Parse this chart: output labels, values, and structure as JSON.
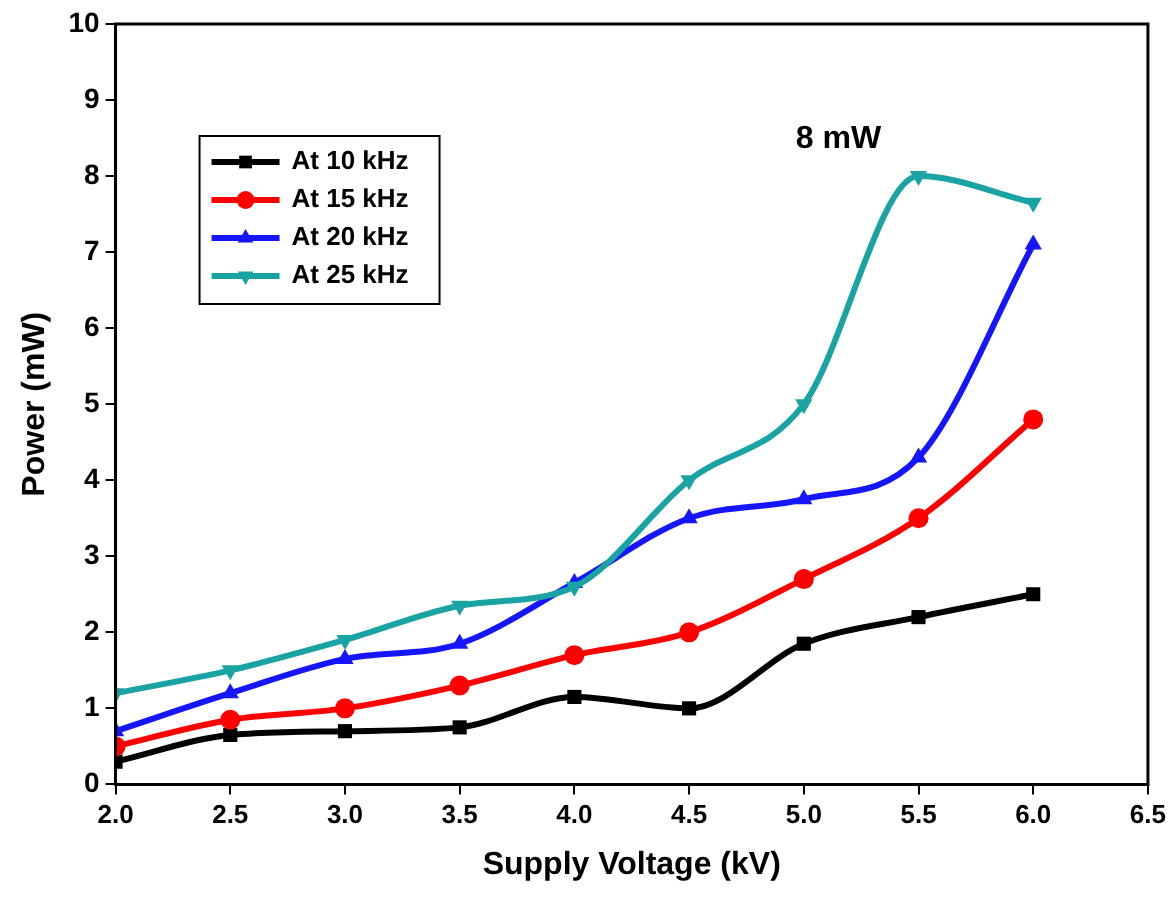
{
  "chart_data": {
    "type": "line",
    "xlabel": "Supply Voltage (kV)",
    "ylabel": "Power (mW)",
    "x": [
      2.0,
      2.5,
      3.0,
      3.5,
      4.0,
      4.5,
      5.0,
      5.5,
      6.0
    ],
    "xlim": [
      2.0,
      6.5
    ],
    "xticks": [
      {
        "value": 2,
        "label": "2.0"
      },
      2.5,
      {
        "value": 3,
        "label": "3.0"
      },
      3.5,
      {
        "value": 4,
        "label": "4.0"
      },
      4.5,
      {
        "value": 5,
        "label": "5.0"
      },
      5.5,
      {
        "value": 6,
        "label": "6.0"
      },
      6.5
    ],
    "ylim": [
      0,
      10
    ],
    "yticks": [
      0,
      1,
      2,
      3,
      4,
      5,
      6,
      7,
      8,
      9,
      10
    ],
    "series": [
      {
        "name": "At 10 kHz",
        "color": "#000000",
        "marker": "square",
        "values": [
          0.3,
          0.65,
          0.7,
          0.75,
          1.15,
          1.0,
          1.85,
          2.2,
          2.5
        ]
      },
      {
        "name": "At 15 kHz",
        "color": "#ff0000",
        "marker": "circle",
        "values": [
          0.5,
          0.85,
          1.0,
          1.3,
          1.7,
          2.0,
          2.7,
          3.5,
          4.8
        ]
      },
      {
        "name": "At 20 kHz",
        "color": "#1515ff",
        "marker": "triangle",
        "values": [
          0.7,
          1.2,
          1.65,
          1.85,
          2.65,
          3.5,
          3.75,
          4.3,
          7.1
        ]
      },
      {
        "name": "At 25 kHz",
        "color": "#1aa3a3",
        "marker": "triangle-down",
        "values": [
          1.2,
          1.5,
          1.9,
          2.35,
          2.6,
          4.0,
          5.0,
          8.0,
          7.65
        ]
      }
    ],
    "annotations": [
      {
        "text": "8 mW",
        "x": 5.5,
        "y": 8.0
      }
    ],
    "legend": "top left",
    "grid": false
  }
}
